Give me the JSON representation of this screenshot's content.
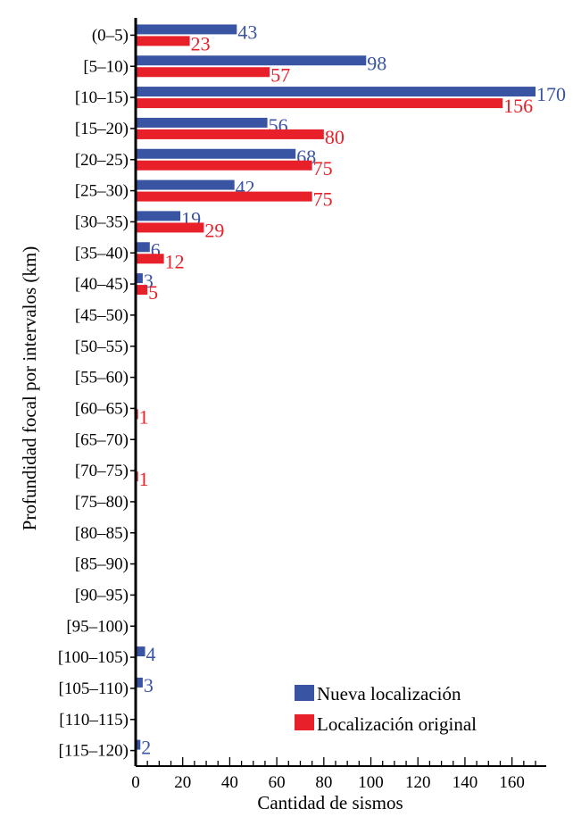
{
  "chart_data": {
    "type": "bar",
    "orientation": "horizontal",
    "categories": [
      "(0–5)",
      "[5–10)",
      "[10–15)",
      "[15–20)",
      "[20–25)",
      "[25–30)",
      "[30–35)",
      "[35–40)",
      "[40–45)",
      "[45–50)",
      "[50–55)",
      "[55–60)",
      "[60–65)",
      "[65–70)",
      "[70–75)",
      "[75–80)",
      "[80–85)",
      "[85–90)",
      "[90–95)",
      "[95–100)",
      "[100–105)",
      "[105–110)",
      "[110–115)",
      "[115–120)"
    ],
    "series": [
      {
        "name": "Nueva localización",
        "color": "#3a54a4",
        "values": [
          43,
          98,
          170,
          56,
          68,
          42,
          19,
          6,
          3,
          0,
          0,
          0,
          0,
          0,
          0,
          0,
          0,
          0,
          0,
          0,
          4,
          3,
          0,
          2
        ],
        "labels": [
          "43",
          "98",
          "170",
          "56",
          "68",
          "42",
          "19",
          "6",
          "3",
          "",
          "",
          "",
          "",
          "",
          "",
          "",
          "",
          "",
          "",
          "",
          "4",
          "3",
          "",
          "2"
        ]
      },
      {
        "name": "Localización original",
        "color": "#e8202a",
        "values": [
          23,
          57,
          156,
          80,
          75,
          75,
          29,
          12,
          5,
          0,
          0,
          0,
          1,
          0,
          1,
          0,
          0,
          0,
          0,
          0,
          0,
          0,
          0,
          0
        ],
        "labels": [
          "23",
          "57",
          "156",
          "80",
          "75",
          "75",
          "29",
          "12",
          "5",
          "",
          "",
          "",
          "1",
          "",
          "1",
          "",
          "",
          "",
          "",
          "",
          "",
          "",
          "",
          ""
        ]
      }
    ],
    "xlabel": "Cantidad de sismos",
    "ylabel": "Profundidad focal por intervalos (km)",
    "xlim": [
      0,
      170
    ],
    "xticks": [
      "0",
      "20",
      "40",
      "60",
      "80",
      "100",
      "120",
      "140",
      "160"
    ],
    "legend_position": "bottom-right",
    "grid": false
  }
}
